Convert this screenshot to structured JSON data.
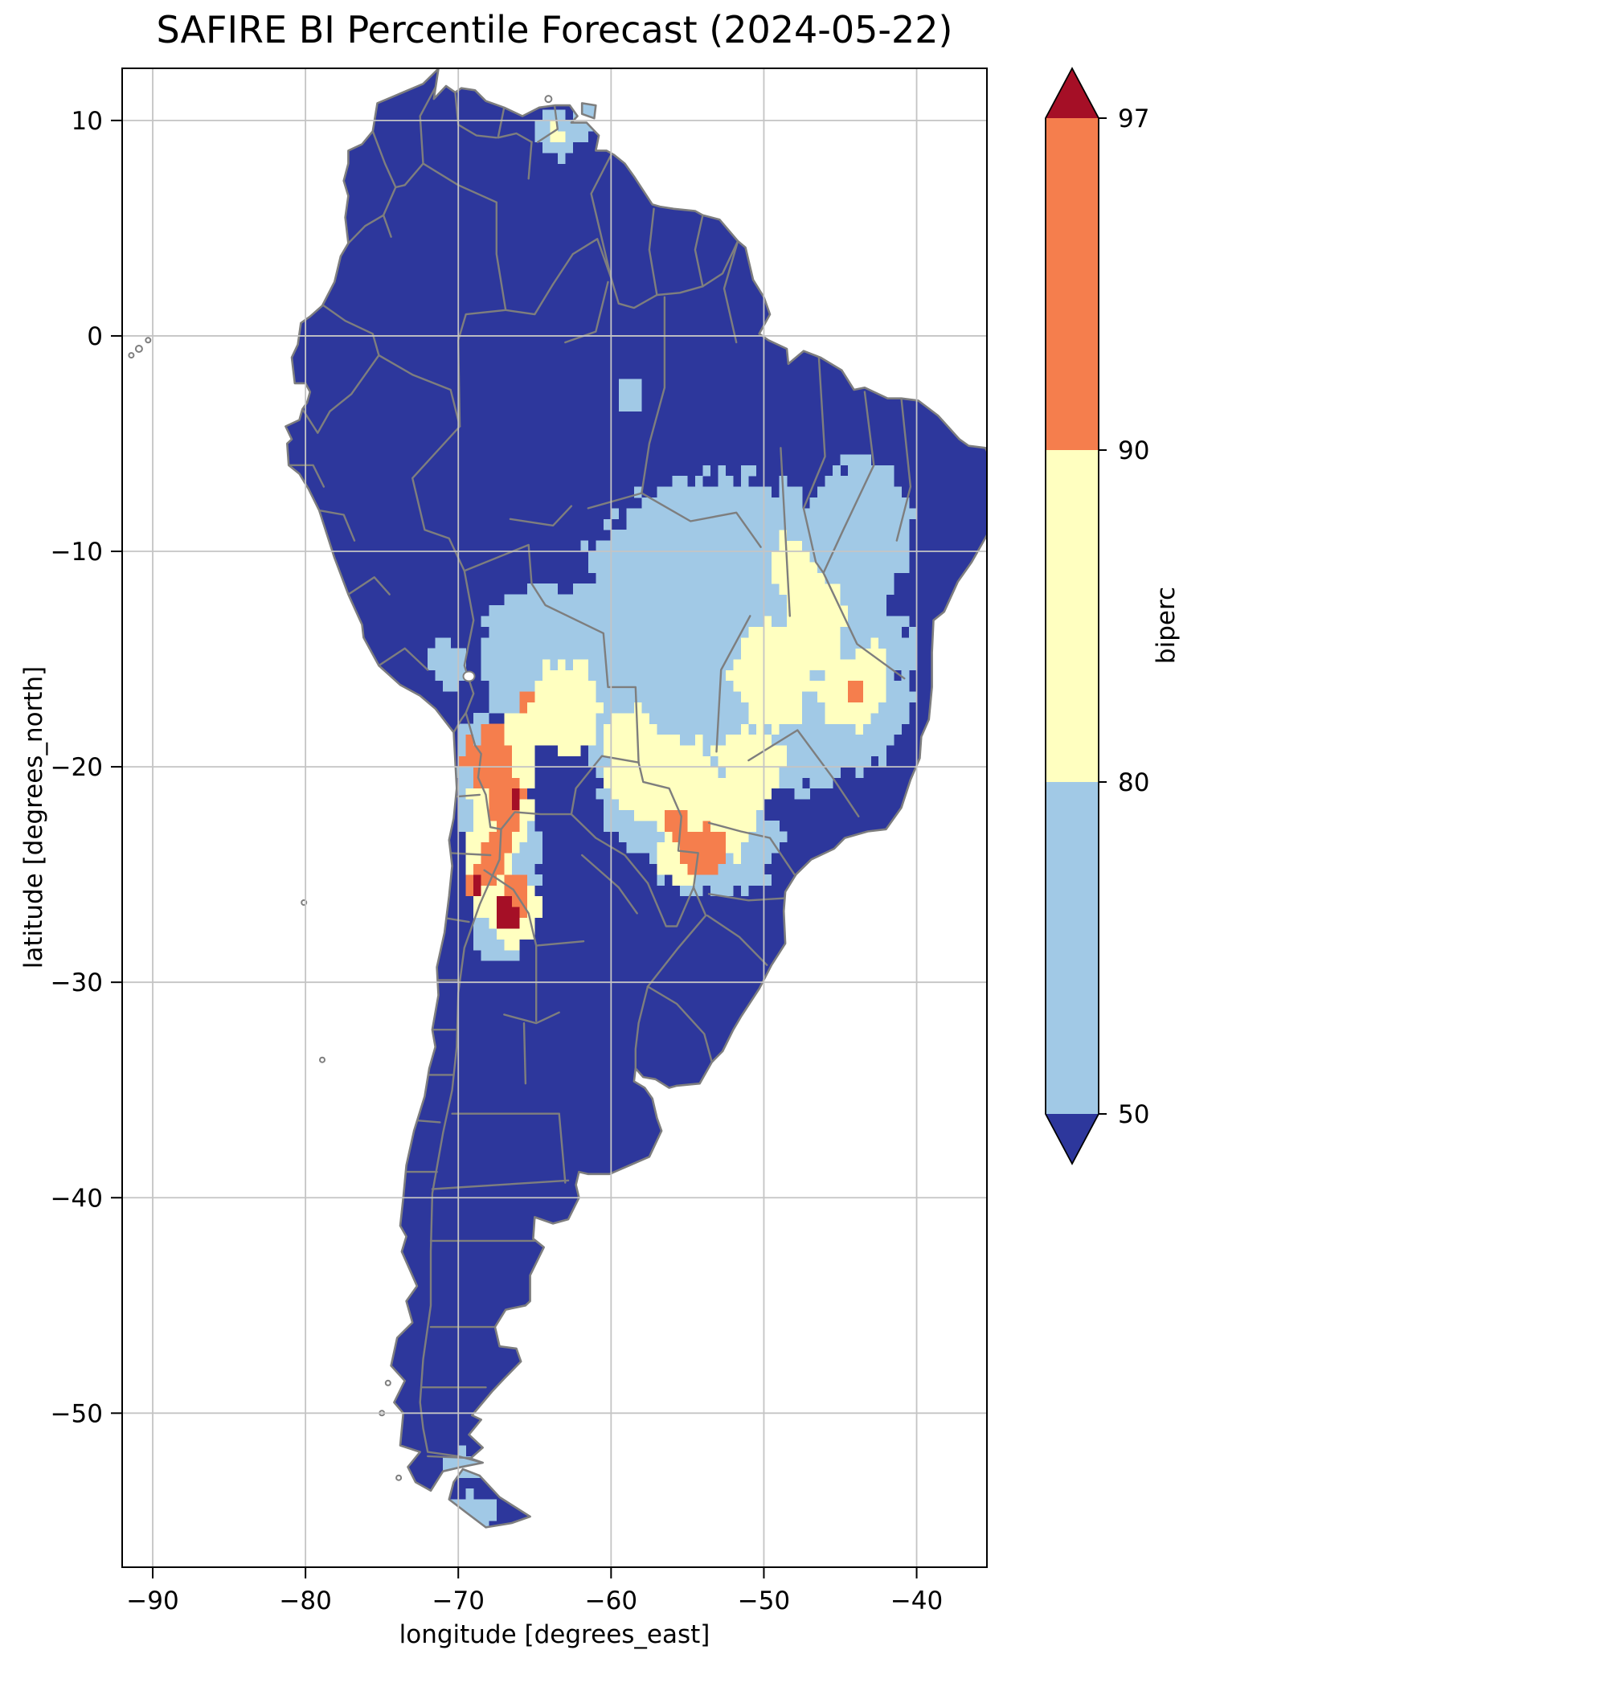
{
  "chart_data": {
    "type": "heatmap",
    "title": "SAFIRE BI Percentile Forecast (2024-05-22)",
    "xlabel": "longitude [degrees_east]",
    "ylabel": "latitude [degrees_north]",
    "region": "South America",
    "xlim": [
      -92,
      -35.4
    ],
    "ylim": [
      -57.15,
      12.42
    ],
    "x_tick_values": [
      -90,
      -80,
      -70,
      -60,
      -50,
      -40
    ],
    "x_tick_labels": [
      "−90",
      "−80",
      "−70",
      "−60",
      "−50",
      "−40"
    ],
    "y_tick_values": [
      10,
      0,
      -10,
      -20,
      -30,
      -40,
      -50
    ],
    "y_tick_labels": [
      "10",
      "0",
      "−10",
      "−20",
      "−30",
      "−40",
      "−50"
    ],
    "grid": true,
    "cell_size_deg": 0.5,
    "colorbar": {
      "label": "biperc",
      "orientation": "vertical",
      "extend": "both",
      "boundaries": [
        50,
        80,
        90,
        97
      ],
      "tick_labels": [
        "50",
        "80",
        "90",
        "97"
      ],
      "colors": [
        "#2d379c",
        "#a1c9e6",
        "#ffffc0",
        "#f57e4d",
        "#a50f26"
      ]
    },
    "bins": [
      {
        "label": "< 50",
        "color": "#2d379c"
      },
      {
        "label": "50–80",
        "color": "#a1c9e6"
      },
      {
        "label": "80–90",
        "color": "#ffffc0"
      },
      {
        "label": "90–97",
        "color": "#f57e4d"
      },
      {
        "label": "> 97",
        "color": "#a50f26"
      }
    ],
    "regions": [
      {
        "bin": "50-80",
        "lon": -52.5,
        "lat": -11.5,
        "rx": 9.0,
        "ry": 5.0
      },
      {
        "bin": "50-80",
        "lon": -48.5,
        "lat": -15.5,
        "rx": 8.0,
        "ry": 5.5
      },
      {
        "bin": "50-80",
        "lon": -55.0,
        "lat": -19.0,
        "rx": 6.5,
        "ry": 5.0
      },
      {
        "bin": "50-80",
        "lon": -53.5,
        "lat": -23.5,
        "rx": 4.5,
        "ry": 2.5
      },
      {
        "bin": "50-80",
        "lon": -61.5,
        "lat": -15.5,
        "rx": 3.5,
        "ry": 4.0
      },
      {
        "bin": "50-80",
        "lon": -66.0,
        "lat": -15.0,
        "rx": 2.5,
        "ry": 3.2
      },
      {
        "bin": "50-80",
        "lon": -64.3,
        "lat": -13.2,
        "rx": 2.0,
        "ry": 1.8
      },
      {
        "bin": "50-80",
        "lon": -70.6,
        "lat": -15.2,
        "rx": 1.3,
        "ry": 1.1
      },
      {
        "bin": "50-80",
        "lon": -43.5,
        "lat": -9.0,
        "rx": 3.4,
        "ry": 3.2
      },
      {
        "bin": "50-80",
        "lon": -44.0,
        "lat": -17.0,
        "rx": 3.2,
        "ry": 3.0
      },
      {
        "bin": "50-80",
        "lon": -58.8,
        "lat": -13.5,
        "rx": 2.2,
        "ry": 2.2
      },
      {
        "bin": "50-80",
        "lon": -68.6,
        "lat": -20.5,
        "rx": 1.6,
        "ry": 3.2
      },
      {
        "bin": "50-80",
        "lon": -66.8,
        "lat": -24.5,
        "rx": 2.2,
        "ry": 3.0
      },
      {
        "bin": "50-80",
        "lon": -67.3,
        "lat": -27.4,
        "rx": 1.8,
        "ry": 1.7
      },
      {
        "bin": "50-80",
        "lon": -57.5,
        "lat": -22.0,
        "rx": 3.0,
        "ry": 2.0
      },
      {
        "bin": "50-80",
        "lon": -63.6,
        "lat": 9.3,
        "rx": 1.3,
        "ry": 1.0
      },
      {
        "bin": "50-80",
        "lon": -61.9,
        "lat": 10.1,
        "rx": 0.9,
        "ry": 0.9
      },
      {
        "bin": "50-80",
        "lon": -69.5,
        "lat": -52.4,
        "rx": 1.4,
        "ry": 0.7
      },
      {
        "bin": "50-80",
        "lon": -69.0,
        "lat": -54.6,
        "rx": 1.6,
        "ry": 0.8
      },
      {
        "bin": "50-80",
        "lon": -58.8,
        "lat": -2.8,
        "rx": 0.9,
        "ry": 0.8
      },
      {
        "bin": "80-90",
        "lon": -63.0,
        "lat": -17.3,
        "rx": 2.4,
        "ry": 2.2
      },
      {
        "bin": "80-90",
        "lon": -56.5,
        "lat": -20.5,
        "rx": 3.8,
        "ry": 2.0
      },
      {
        "bin": "80-90",
        "lon": -53.5,
        "lat": -22.3,
        "rx": 3.2,
        "ry": 2.2
      },
      {
        "bin": "80-90",
        "lon": -58.8,
        "lat": -18.8,
        "rx": 1.8,
        "ry": 1.5
      },
      {
        "bin": "80-90",
        "lon": -49.5,
        "lat": -15.8,
        "rx": 2.6,
        "ry": 2.4
      },
      {
        "bin": "80-90",
        "lon": -46.5,
        "lat": -13.3,
        "rx": 2.0,
        "ry": 2.2
      },
      {
        "bin": "80-90",
        "lon": -44.6,
        "lat": -16.6,
        "rx": 1.9,
        "ry": 1.7
      },
      {
        "bin": "80-90",
        "lon": -48.3,
        "lat": -10.8,
        "rx": 1.4,
        "ry": 1.6
      },
      {
        "bin": "80-90",
        "lon": -67.1,
        "lat": -21.0,
        "rx": 2.0,
        "ry": 3.3
      },
      {
        "bin": "80-90",
        "lon": -68.0,
        "lat": -24.8,
        "rx": 1.6,
        "ry": 2.2
      },
      {
        "bin": "80-90",
        "lon": -66.3,
        "lat": -26.8,
        "rx": 1.6,
        "ry": 1.6
      },
      {
        "bin": "80-90",
        "lon": -66.0,
        "lat": -18.6,
        "rx": 1.3,
        "ry": 1.4
      },
      {
        "bin": "80-90",
        "lon": -43.0,
        "lat": -15.8,
        "rx": 1.2,
        "ry": 1.5
      },
      {
        "bin": "80-90",
        "lon": -50.8,
        "lat": -19.8,
        "rx": 2.2,
        "ry": 1.6
      },
      {
        "bin": "80-90",
        "lon": -55.4,
        "lat": -24.3,
        "rx": 1.5,
        "ry": 1.2
      },
      {
        "bin": "80-90",
        "lon": -63.7,
        "lat": 9.4,
        "rx": 0.5,
        "ry": 0.5
      },
      {
        "bin": "90-97",
        "lon": -67.8,
        "lat": -19.6,
        "rx": 1.2,
        "ry": 1.6
      },
      {
        "bin": "90-97",
        "lon": -66.9,
        "lat": -21.6,
        "rx": 1.1,
        "ry": 1.7
      },
      {
        "bin": "90-97",
        "lon": -67.6,
        "lat": -24.1,
        "rx": 0.9,
        "ry": 1.4
      },
      {
        "bin": "90-97",
        "lon": -66.2,
        "lat": -25.9,
        "rx": 0.9,
        "ry": 1.1
      },
      {
        "bin": "90-97",
        "lon": -69.2,
        "lat": -19.3,
        "rx": 0.6,
        "ry": 0.8
      },
      {
        "bin": "90-97",
        "lon": -53.9,
        "lat": -23.9,
        "rx": 1.7,
        "ry": 1.1
      },
      {
        "bin": "90-97",
        "lon": -55.7,
        "lat": -22.6,
        "rx": 0.9,
        "ry": 0.7
      },
      {
        "bin": "90-97",
        "lon": -44.1,
        "lat": -16.4,
        "rx": 0.5,
        "ry": 0.5
      },
      {
        "bin": "90-97",
        "lon": -68.9,
        "lat": -25.4,
        "rx": 0.5,
        "ry": 0.7
      },
      {
        "bin": "90-97",
        "lon": -65.6,
        "lat": -16.9,
        "rx": 0.4,
        "ry": 0.4
      },
      {
        "bin": ">97",
        "lon": -66.9,
        "lat": -26.9,
        "rx": 0.75,
        "ry": 0.85
      },
      {
        "bin": ">97",
        "lon": -66.3,
        "lat": -21.3,
        "rx": 0.4,
        "ry": 0.45
      },
      {
        "bin": ">97",
        "lon": -68.7,
        "lat": -25.4,
        "rx": 0.35,
        "ry": 0.4
      }
    ]
  }
}
